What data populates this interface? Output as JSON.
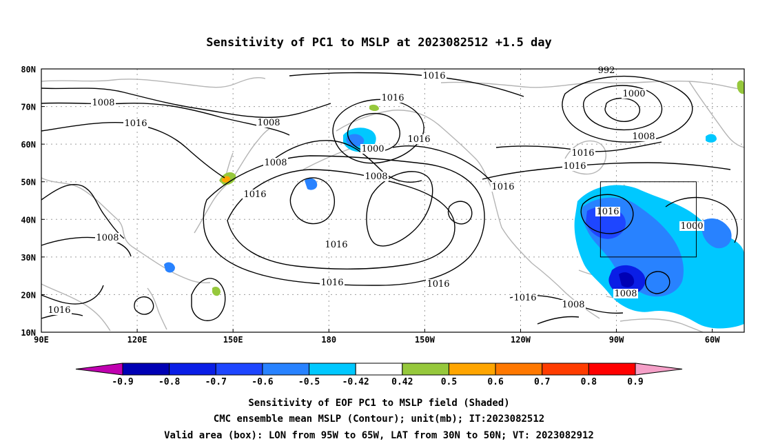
{
  "title": "Sensitivity of PC1 to MSLP at 2023082512 +1.5 day",
  "map": {
    "lon_ticks": [
      "90E",
      "120E",
      "150E",
      "180",
      "150W",
      "120W",
      "90W",
      "60W"
    ],
    "lat_ticks": [
      "80N",
      "70N",
      "60N",
      "50N",
      "40N",
      "30N",
      "20N",
      "10N"
    ],
    "lon_range": [
      90,
      310
    ],
    "lat_range": [
      10,
      80
    ],
    "grid": "dotted",
    "valid_box": {
      "lon": [
        265,
        295
      ],
      "lat": [
        30,
        50
      ]
    },
    "contour_labels": [
      "1016",
      "1008",
      "1016",
      "1008",
      "1016",
      "1008",
      "1016",
      "1000",
      "1008",
      "1016",
      "1016",
      "1016",
      "1016",
      "1016",
      "1016",
      "1008",
      "1008",
      "1016",
      "1000",
      "992",
      "1000",
      "1008",
      "1016",
      "1016",
      "1008",
      "1016"
    ]
  },
  "colorbar": {
    "labels": [
      "-0.9",
      "-0.8",
      "-0.7",
      "-0.6",
      "-0.5",
      "-0.42",
      "0.42",
      "0.5",
      "0.6",
      "0.7",
      "0.8",
      "0.9"
    ],
    "colors": [
      "#c000b0",
      "#0000b4",
      "#0a1ee6",
      "#1e46ff",
      "#2882ff",
      "#00c8ff",
      "#ffffff",
      "#96c83c",
      "#ffa500",
      "#ff7800",
      "#ff3c00",
      "#ff0000",
      "#f5a0c8"
    ]
  },
  "caption": {
    "line1": "Sensitivity of EOF PC1 to MSLP field (Shaded)",
    "line2": "CMC ensemble mean MSLP (Contour); unit(mb); IT:2023082512",
    "line3": "Valid area (box): LON from 95W to 65W, LAT from 30N to 50N; VT: 2023082912"
  }
}
